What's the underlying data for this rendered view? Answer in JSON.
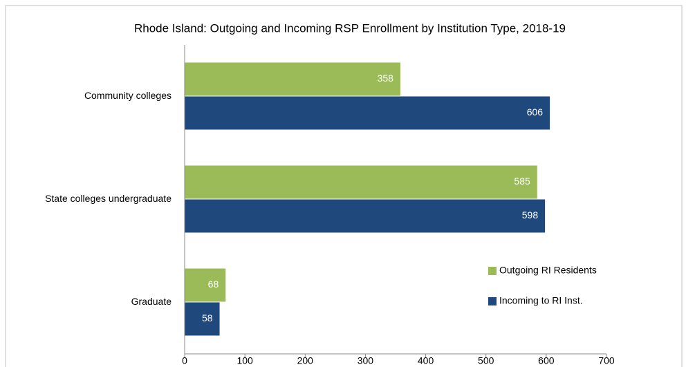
{
  "chart_data": {
    "type": "bar",
    "orientation": "horizontal",
    "title": "Rhode Island: Outgoing and Incoming RSP Enrollment by Institution Type, 2018-19",
    "categories": [
      "Community colleges",
      "State colleges undergraduate",
      "Graduate"
    ],
    "series": [
      {
        "name": "Outgoing RI Residents",
        "color": "#9bbb59",
        "values": [
          358,
          585,
          68
        ]
      },
      {
        "name": "Incoming to RI Inst.",
        "color": "#1f497d",
        "values": [
          606,
          598,
          58
        ]
      }
    ],
    "xlim": [
      0,
      700
    ],
    "xticks": [
      0,
      100,
      200,
      300,
      400,
      500,
      600,
      700
    ],
    "legend": "lower right",
    "grid": false
  }
}
